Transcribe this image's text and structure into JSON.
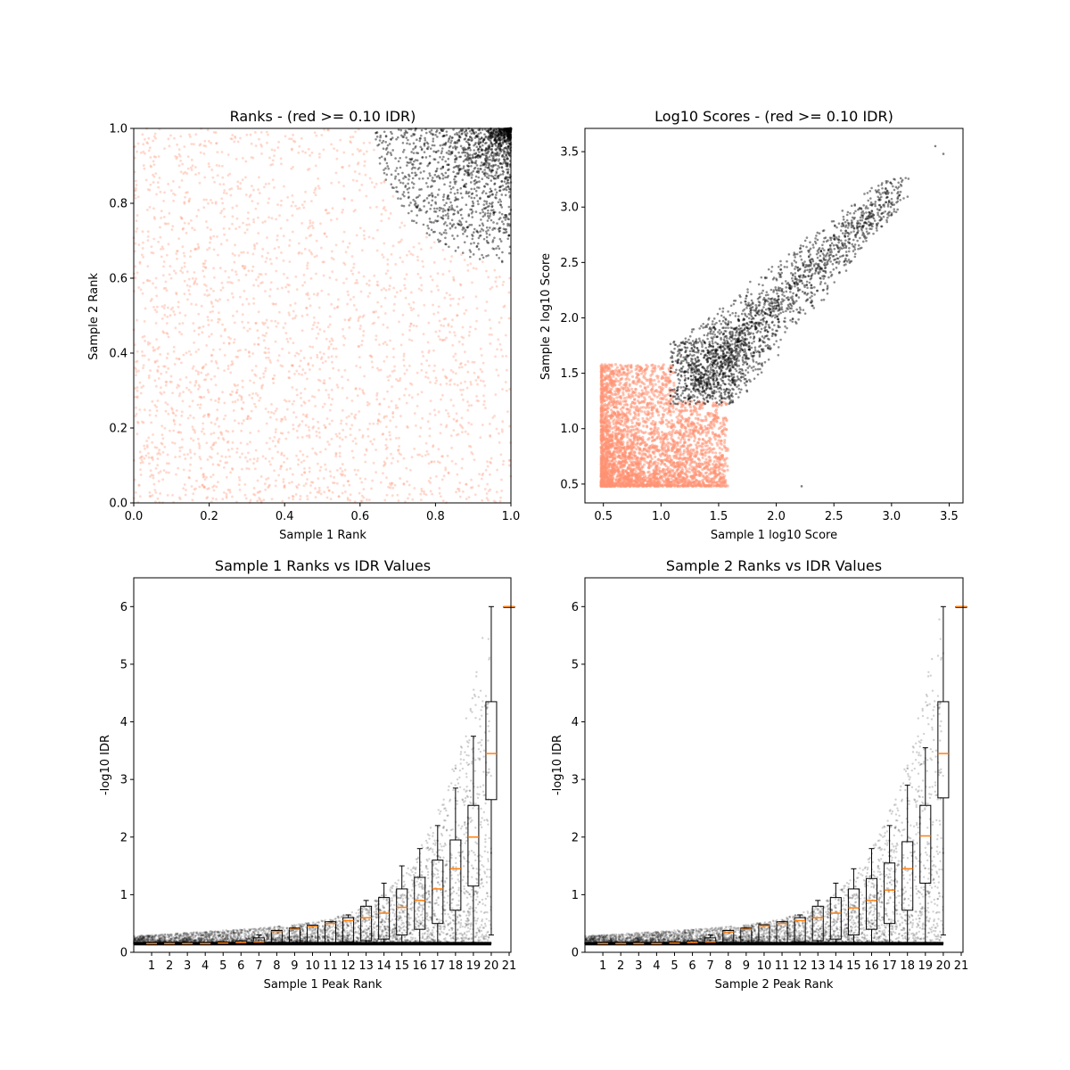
{
  "chart_data": [
    {
      "type": "scatter",
      "title": "Ranks - (red >= 0.10 IDR)",
      "xlabel": "Sample 1 Rank",
      "ylabel": "Sample 2 Rank",
      "xlim": [
        0.0,
        1.0
      ],
      "ylim": [
        0.0,
        1.0
      ],
      "xticks": [
        "0.0",
        "0.2",
        "0.4",
        "0.6",
        "0.8",
        "1.0"
      ],
      "yticks": [
        "0.0",
        "0.2",
        "0.4",
        "0.6",
        "0.8",
        "1.0"
      ],
      "legend": "none",
      "grid": false,
      "series": [
        {
          "color": "#FF9272",
          "description_level": "IDR >= 0.10",
          "values": [
            [
              0.05,
              0.1
            ],
            [
              0.1,
              0.3
            ],
            [
              0.2,
              0.15
            ],
            [
              0.3,
              0.5
            ],
            [
              0.4,
              0.2
            ],
            [
              0.5,
              0.6
            ],
            [
              0.6,
              0.35
            ],
            [
              0.7,
              0.1
            ],
            [
              0.8,
              0.45
            ],
            [
              0.9,
              0.25
            ],
            [
              0.15,
              0.75
            ],
            [
              0.35,
              0.85
            ],
            [
              0.55,
              0.9
            ],
            [
              0.25,
              0.95
            ],
            [
              0.95,
              0.55
            ]
          ]
        },
        {
          "color": "#000000",
          "description_level": "IDR < 0.10",
          "values": [
            [
              0.7,
              0.9
            ],
            [
              0.75,
              0.85
            ],
            [
              0.8,
              0.95
            ],
            [
              0.85,
              0.8
            ],
            [
              0.9,
              0.9
            ],
            [
              0.95,
              0.95
            ],
            [
              0.98,
              0.75
            ],
            [
              0.88,
              0.7
            ],
            [
              0.72,
              0.98
            ],
            [
              0.99,
              0.99
            ]
          ]
        }
      ]
    },
    {
      "type": "scatter",
      "title": "Log10 Scores - (red >= 0.10 IDR)",
      "xlabel": "Sample 1 log10 Score",
      "ylabel": "Sample 2 log10 Score",
      "xlim": [
        0.34,
        3.62
      ],
      "ylim": [
        0.33,
        3.71
      ],
      "xticks": [
        "0.5",
        "1.0",
        "1.5",
        "2.0",
        "2.5",
        "3.0",
        "3.5"
      ],
      "yticks": [
        "0.5",
        "1.0",
        "1.5",
        "2.0",
        "2.5",
        "3.0",
        "3.5"
      ],
      "legend": "none",
      "grid": false,
      "series": [
        {
          "color": "#FF9272",
          "values": [
            [
              0.5,
              0.5
            ],
            [
              0.6,
              0.8
            ],
            [
              0.8,
              1.0
            ],
            [
              1.0,
              0.7
            ],
            [
              1.2,
              0.9
            ],
            [
              1.5,
              0.6
            ],
            [
              0.7,
              1.4
            ],
            [
              0.9,
              1.2
            ],
            [
              1.1,
              1.1
            ],
            [
              2.2,
              0.5
            ]
          ]
        },
        {
          "color": "#000000",
          "values": [
            [
              1.1,
              1.6
            ],
            [
              1.3,
              1.3
            ],
            [
              1.5,
              1.5
            ],
            [
              1.7,
              1.7
            ],
            [
              1.9,
              2.0
            ],
            [
              2.2,
              2.3
            ],
            [
              2.6,
              2.8
            ],
            [
              2.9,
              3.2
            ],
            [
              3.4,
              3.55
            ],
            [
              3.45,
              3.48
            ]
          ]
        }
      ]
    },
    {
      "type": "scatter",
      "subtype": "scatter-with-boxplot",
      "title": "Sample 1 Ranks vs IDR Values",
      "xlabel": "Sample 1 Peak Rank",
      "ylabel": "-log10 IDR",
      "xlim": [
        0,
        21.1
      ],
      "ylim": [
        0,
        6.5
      ],
      "xticks": [
        "1",
        "2",
        "3",
        "4",
        "5",
        "6",
        "7",
        "8",
        "9",
        "10",
        "11",
        "12",
        "13",
        "14",
        "15",
        "16",
        "17",
        "18",
        "19",
        "20",
        "21"
      ],
      "yticks": [
        "0",
        "1",
        "2",
        "3",
        "4",
        "5",
        "6"
      ],
      "legend": "none",
      "grid": false,
      "boxes": [
        {
          "x": 1,
          "q1": 0.15,
          "median": 0.15,
          "q3": 0.15,
          "whislo": 0.15,
          "whishi": 0.15
        },
        {
          "x": 2,
          "q1": 0.15,
          "median": 0.15,
          "q3": 0.15,
          "whislo": 0.15,
          "whishi": 0.15
        },
        {
          "x": 3,
          "q1": 0.15,
          "median": 0.15,
          "q3": 0.15,
          "whislo": 0.15,
          "whishi": 0.15
        },
        {
          "x": 4,
          "q1": 0.15,
          "median": 0.15,
          "q3": 0.16,
          "whislo": 0.15,
          "whishi": 0.16
        },
        {
          "x": 5,
          "q1": 0.15,
          "median": 0.16,
          "q3": 0.18,
          "whislo": 0.15,
          "whishi": 0.18
        },
        {
          "x": 6,
          "q1": 0.15,
          "median": 0.17,
          "q3": 0.2,
          "whislo": 0.15,
          "whishi": 0.2
        },
        {
          "x": 7,
          "q1": 0.15,
          "median": 0.18,
          "q3": 0.25,
          "whislo": 0.15,
          "whishi": 0.3
        },
        {
          "x": 8,
          "q1": 0.15,
          "median": 0.36,
          "q3": 0.38,
          "whislo": 0.15,
          "whishi": 0.38
        },
        {
          "x": 9,
          "q1": 0.15,
          "median": 0.4,
          "q3": 0.42,
          "whislo": 0.15,
          "whishi": 0.42
        },
        {
          "x": 10,
          "q1": 0.15,
          "median": 0.45,
          "q3": 0.47,
          "whislo": 0.15,
          "whishi": 0.47
        },
        {
          "x": 11,
          "q1": 0.16,
          "median": 0.5,
          "q3": 0.53,
          "whislo": 0.15,
          "whishi": 0.53
        },
        {
          "x": 12,
          "q1": 0.18,
          "median": 0.55,
          "q3": 0.6,
          "whislo": 0.15,
          "whishi": 0.65
        },
        {
          "x": 13,
          "q1": 0.2,
          "median": 0.6,
          "q3": 0.8,
          "whislo": 0.15,
          "whishi": 0.9
        },
        {
          "x": 14,
          "q1": 0.23,
          "median": 0.68,
          "q3": 0.95,
          "whislo": 0.15,
          "whishi": 1.2
        },
        {
          "x": 15,
          "q1": 0.3,
          "median": 0.78,
          "q3": 1.1,
          "whislo": 0.15,
          "whishi": 1.5
        },
        {
          "x": 16,
          "q1": 0.4,
          "median": 0.9,
          "q3": 1.3,
          "whislo": 0.15,
          "whishi": 1.8
        },
        {
          "x": 17,
          "q1": 0.5,
          "median": 1.1,
          "q3": 1.6,
          "whislo": 0.15,
          "whishi": 2.2
        },
        {
          "x": 18,
          "q1": 0.73,
          "median": 1.45,
          "q3": 1.95,
          "whislo": 0.15,
          "whishi": 2.85
        },
        {
          "x": 19,
          "q1": 1.15,
          "median": 2.0,
          "q3": 2.55,
          "whislo": 0.15,
          "whishi": 3.75
        },
        {
          "x": 20,
          "q1": 2.65,
          "median": 3.45,
          "q3": 4.35,
          "whislo": 0.3,
          "whishi": 6.0
        },
        {
          "x": 21,
          "q1": 6.0,
          "median": 6.0,
          "q3": 6.0,
          "whislo": 6.0,
          "whishi": 6.0
        }
      ]
    },
    {
      "type": "scatter",
      "subtype": "scatter-with-boxplot",
      "title": "Sample 2 Ranks vs IDR Values",
      "xlabel": "Sample 2 Peak Rank",
      "ylabel": "-log10 IDR",
      "xlim": [
        0,
        21.1
      ],
      "ylim": [
        0,
        6.5
      ],
      "xticks": [
        "1",
        "2",
        "3",
        "4",
        "5",
        "6",
        "7",
        "8",
        "9",
        "10",
        "11",
        "12",
        "13",
        "14",
        "15",
        "16",
        "17",
        "18",
        "19",
        "20",
        "21"
      ],
      "yticks": [
        "0",
        "1",
        "2",
        "3",
        "4",
        "5",
        "6"
      ],
      "legend": "none",
      "grid": false,
      "boxes": [
        {
          "x": 1,
          "q1": 0.15,
          "median": 0.15,
          "q3": 0.15,
          "whislo": 0.15,
          "whishi": 0.15
        },
        {
          "x": 2,
          "q1": 0.15,
          "median": 0.15,
          "q3": 0.15,
          "whislo": 0.15,
          "whishi": 0.15
        },
        {
          "x": 3,
          "q1": 0.15,
          "median": 0.15,
          "q3": 0.15,
          "whislo": 0.15,
          "whishi": 0.15
        },
        {
          "x": 4,
          "q1": 0.15,
          "median": 0.15,
          "q3": 0.16,
          "whislo": 0.15,
          "whishi": 0.16
        },
        {
          "x": 5,
          "q1": 0.15,
          "median": 0.16,
          "q3": 0.18,
          "whislo": 0.15,
          "whishi": 0.18
        },
        {
          "x": 6,
          "q1": 0.15,
          "median": 0.17,
          "q3": 0.2,
          "whislo": 0.15,
          "whishi": 0.2
        },
        {
          "x": 7,
          "q1": 0.15,
          "median": 0.18,
          "q3": 0.25,
          "whislo": 0.15,
          "whishi": 0.3
        },
        {
          "x": 8,
          "q1": 0.15,
          "median": 0.35,
          "q3": 0.38,
          "whislo": 0.15,
          "whishi": 0.38
        },
        {
          "x": 9,
          "q1": 0.15,
          "median": 0.4,
          "q3": 0.42,
          "whislo": 0.15,
          "whishi": 0.42
        },
        {
          "x": 10,
          "q1": 0.15,
          "median": 0.46,
          "q3": 0.48,
          "whislo": 0.15,
          "whishi": 0.48
        },
        {
          "x": 11,
          "q1": 0.16,
          "median": 0.5,
          "q3": 0.53,
          "whislo": 0.15,
          "whishi": 0.53
        },
        {
          "x": 12,
          "q1": 0.18,
          "median": 0.55,
          "q3": 0.6,
          "whislo": 0.15,
          "whishi": 0.65
        },
        {
          "x": 13,
          "q1": 0.2,
          "median": 0.6,
          "q3": 0.8,
          "whislo": 0.15,
          "whishi": 0.9
        },
        {
          "x": 14,
          "q1": 0.23,
          "median": 0.68,
          "q3": 0.95,
          "whislo": 0.15,
          "whishi": 1.2
        },
        {
          "x": 15,
          "q1": 0.3,
          "median": 0.77,
          "q3": 1.1,
          "whislo": 0.15,
          "whishi": 1.45
        },
        {
          "x": 16,
          "q1": 0.4,
          "median": 0.9,
          "q3": 1.28,
          "whislo": 0.15,
          "whishi": 1.8
        },
        {
          "x": 17,
          "q1": 0.5,
          "median": 1.08,
          "q3": 1.55,
          "whislo": 0.15,
          "whishi": 2.2
        },
        {
          "x": 18,
          "q1": 0.73,
          "median": 1.45,
          "q3": 1.92,
          "whislo": 0.15,
          "whishi": 2.9
        },
        {
          "x": 19,
          "q1": 1.2,
          "median": 2.02,
          "q3": 2.55,
          "whislo": 0.15,
          "whishi": 3.55
        },
        {
          "x": 20,
          "q1": 2.68,
          "median": 3.45,
          "q3": 4.35,
          "whislo": 0.3,
          "whishi": 6.0
        },
        {
          "x": 21,
          "q1": 6.0,
          "median": 6.0,
          "q3": 6.0,
          "whislo": 6.0,
          "whishi": 6.0
        }
      ]
    }
  ]
}
